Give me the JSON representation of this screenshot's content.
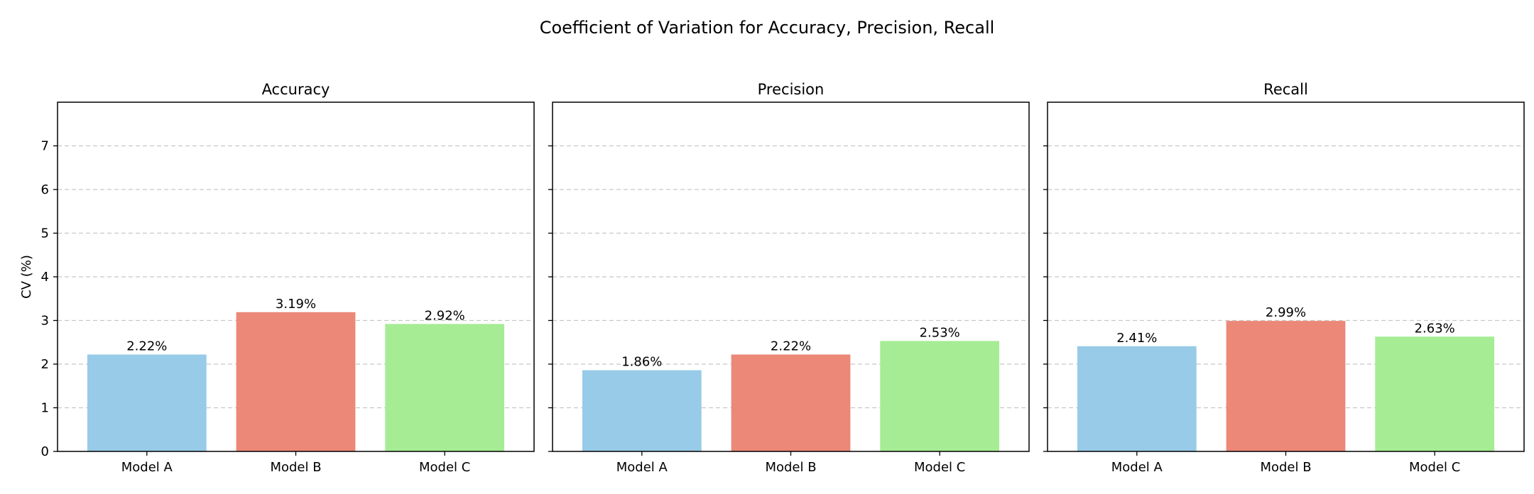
{
  "figure": {
    "title": "Coefficient of Variation for Accuracy, Precision, Recall"
  },
  "chart_data": [
    {
      "type": "bar",
      "title": "Accuracy",
      "ylabel": "CV (%)",
      "xlabel": "",
      "categories": [
        "Model A",
        "Model B",
        "Model C"
      ],
      "values": [
        2.22,
        3.19,
        2.92
      ],
      "value_labels": [
        "2.22%",
        "3.19%",
        "2.92%"
      ],
      "colors": [
        "#97cbe8",
        "#eb8878",
        "#a6ec94"
      ],
      "ylim": [
        0,
        8
      ],
      "yticks": [
        0,
        1,
        2,
        3,
        4,
        5,
        6,
        7
      ],
      "grid": "y-dashed"
    },
    {
      "type": "bar",
      "title": "Precision",
      "ylabel": "",
      "xlabel": "",
      "categories": [
        "Model A",
        "Model B",
        "Model C"
      ],
      "values": [
        1.86,
        2.22,
        2.53
      ],
      "value_labels": [
        "1.86%",
        "2.22%",
        "2.53%"
      ],
      "colors": [
        "#97cbe8",
        "#eb8878",
        "#a6ec94"
      ],
      "ylim": [
        0,
        8
      ],
      "yticks": [
        0,
        1,
        2,
        3,
        4,
        5,
        6,
        7
      ],
      "grid": "y-dashed"
    },
    {
      "type": "bar",
      "title": "Recall",
      "ylabel": "",
      "xlabel": "",
      "categories": [
        "Model A",
        "Model B",
        "Model C"
      ],
      "values": [
        2.41,
        2.99,
        2.63
      ],
      "value_labels": [
        "2.41%",
        "2.99%",
        "2.63%"
      ],
      "colors": [
        "#97cbe8",
        "#eb8878",
        "#a6ec94"
      ],
      "ylim": [
        0,
        8
      ],
      "yticks": [
        0,
        1,
        2,
        3,
        4,
        5,
        6,
        7
      ],
      "grid": "y-dashed"
    }
  ]
}
